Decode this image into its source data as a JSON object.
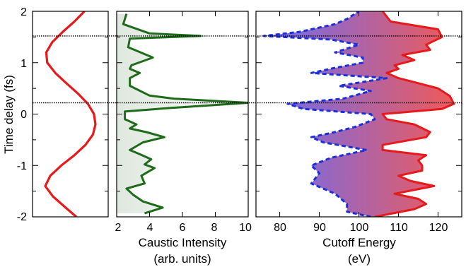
{
  "chart_data": [
    {
      "type": "line",
      "panel": "field",
      "ylabel": "Time delay (fs)",
      "ylim": [
        -2,
        2
      ],
      "yticks": [
        "2",
        "1",
        "0",
        "-1",
        "-2"
      ],
      "series": [
        {
          "color": "#e8191b",
          "y": [
            -2.0,
            -1.8,
            -1.6,
            -1.4,
            -1.2,
            -1.0,
            -0.8,
            -0.6,
            -0.4,
            -0.2,
            0.0,
            0.2,
            0.4,
            0.6,
            0.8,
            1.0,
            1.2,
            1.4,
            1.6,
            1.8,
            2.0
          ],
          "x": [
            0.62,
            0.38,
            0.15,
            0.0,
            0.1,
            0.32,
            0.58,
            0.8,
            0.95,
            1.0,
            0.97,
            0.85,
            0.65,
            0.42,
            0.2,
            0.04,
            0.02,
            0.14,
            0.35,
            0.58,
            0.78
          ]
        }
      ],
      "hlines": [
        1.52,
        0.22
      ]
    },
    {
      "type": "line",
      "panel": "caustic",
      "xlabel": "Caustic Intensity",
      "xlabel2": "(arb. units)",
      "xlim": [
        2,
        10
      ],
      "xticks": [
        "2",
        "4",
        "6",
        "8",
        "10"
      ],
      "ylim": [
        -2,
        2
      ],
      "series": [
        {
          "color": "#1e6b1a",
          "fill": "#e3ebe3",
          "y": [
            -1.93,
            -1.82,
            -1.7,
            -1.57,
            -1.45,
            -1.35,
            -1.2,
            -1.05,
            -0.98,
            -0.88,
            -0.78,
            -0.7,
            -0.55,
            -0.45,
            -0.35,
            -0.28,
            -0.2,
            -0.1,
            0.05,
            0.12,
            0.22,
            0.3,
            0.36,
            0.55,
            0.7,
            0.8,
            0.88,
            0.95,
            1.1,
            1.3,
            1.47,
            1.52,
            1.57,
            1.75,
            1.95
          ],
          "x": [
            3.7,
            4.8,
            3.6,
            3.0,
            2.6,
            3.7,
            3.5,
            4.3,
            3.7,
            4.1,
            3.4,
            2.8,
            3.6,
            4.9,
            3.8,
            2.8,
            3.2,
            2.5,
            2.5,
            5.3,
            10.0,
            5.5,
            4.0,
            2.8,
            2.8,
            3.4,
            2.8,
            2.9,
            4.2,
            2.7,
            2.8,
            7.1,
            4.0,
            2.4,
            2.6
          ]
        }
      ]
    },
    {
      "type": "area",
      "panel": "cutoff",
      "xlabel": "Cutoff Energy",
      "xlabel2": "(eV)",
      "xlim": [
        74,
        126
      ],
      "xticks": [
        "80",
        "90",
        "100",
        "110",
        "120"
      ],
      "ylim": [
        -2,
        2
      ],
      "series": [
        {
          "name": "",
          "color": "#e8191b",
          "y": [
            -2.0,
            -1.85,
            -1.75,
            -1.65,
            -1.55,
            -1.4,
            -1.3,
            -1.2,
            -1.1,
            -1.0,
            -0.9,
            -0.8,
            -0.7,
            -0.6,
            -0.45,
            -0.35,
            -0.2,
            -0.1,
            0.0,
            0.1,
            0.2,
            0.35,
            0.5,
            0.7,
            0.8,
            0.88,
            0.95,
            1.05,
            1.15,
            1.25,
            1.35,
            1.5,
            1.65,
            1.8,
            2.0
          ],
          "x": [
            104,
            114,
            117,
            115,
            109,
            119,
            113,
            110,
            116,
            116,
            115,
            117,
            106,
            106,
            117,
            118,
            114,
            107,
            106,
            121,
            124,
            123,
            120,
            110,
            107,
            110,
            109,
            114,
            111,
            118,
            117,
            121,
            120,
            108,
            106
          ]
        },
        {
          "name": "",
          "color": "#1a2fd9",
          "y": [
            -2.0,
            -1.9,
            -1.75,
            -1.55,
            -1.35,
            -1.15,
            -1.0,
            -0.85,
            -0.7,
            -0.55,
            -0.45,
            -0.35,
            -0.25,
            -0.1,
            0.0,
            0.1,
            0.2,
            0.3,
            0.45,
            0.55,
            0.7,
            0.8,
            0.9,
            1.0,
            1.1,
            1.2,
            1.35,
            1.45,
            1.52,
            1.6,
            1.75,
            1.85,
            2.0
          ],
          "x": [
            103,
            97,
            97,
            94,
            88,
            90,
            88,
            93,
            102,
            91,
            88,
            94,
            99,
            104,
            103,
            86,
            82,
            96,
            103,
            95,
            107,
            88,
            94,
            101,
            101,
            94,
            100,
            93,
            76,
            85,
            94,
            97,
            100
          ]
        }
      ],
      "gradient": [
        "#6b6df2",
        "#f05a5a"
      ]
    }
  ]
}
